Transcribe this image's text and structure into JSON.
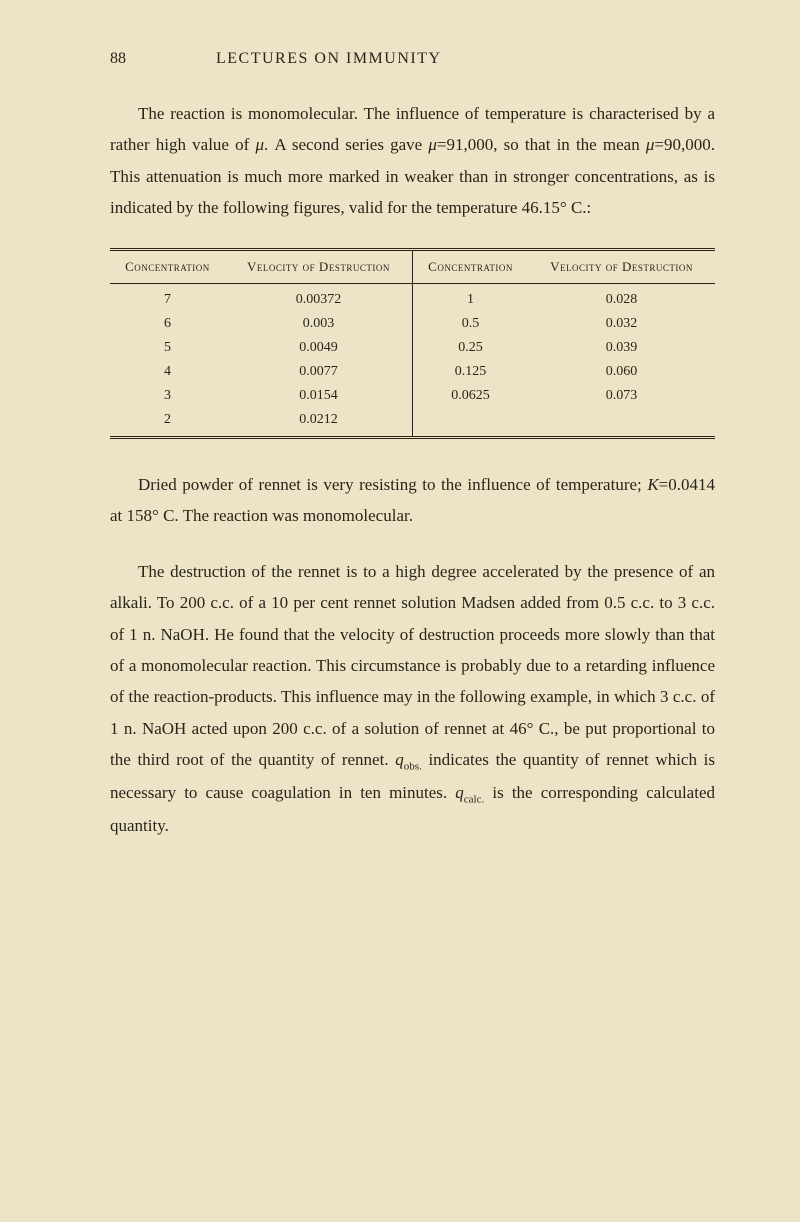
{
  "header": {
    "page_number": "88",
    "title": "LECTURES ON IMMUNITY"
  },
  "paragraph1": "The reaction is monomolecular. The influence of temperature is characterised by a rather high value of μ. A second series gave μ=91,000, so that in the mean μ=90,000. This attenuation is much more marked in weaker than in stronger concentrations, as is indicated by the following figures, valid for the temperature 46.15° C.:",
  "table": {
    "headers": [
      "Concentration",
      "Velocity of Destruction",
      "Concentration",
      "Velocity of Destruction"
    ],
    "rows": [
      [
        "7",
        "0.00372",
        "1",
        "0.028"
      ],
      [
        "6",
        "0.003",
        "0.5",
        "0.032"
      ],
      [
        "5",
        "0.0049",
        "0.25",
        "0.039"
      ],
      [
        "4",
        "0.0077",
        "0.125",
        "0.060"
      ],
      [
        "3",
        "0.0154",
        "0.0625",
        "0.073"
      ],
      [
        "2",
        "0.0212",
        "",
        ""
      ]
    ]
  },
  "paragraph2": "Dried powder of rennet is very resisting to the influence of temperature; K=0.0414 at 158° C. The reaction was monomolecular.",
  "paragraph3_part1": "The destruction of the rennet is to a high degree accelerated by the presence of an alkali. To 200 c.c. of a 10 per cent rennet solution Madsen added from 0.5 c.c. to 3 c.c. of 1 n. NaOH. He found that the velocity of destruction proceeds more slowly than that of a monomolecular reaction. This circumstance is probably due to a retarding influence of the reaction-products. This influence may in the following example, in which 3 c.c. of 1 n. NaOH acted upon 200 c.c. of a solution of rennet at 46° C., be put proportional to the third root of the quantity of rennet. ",
  "paragraph3_qobs": "q",
  "paragraph3_obs_sub": "obs.",
  "paragraph3_part2": " indicates the quantity of rennet which is necessary to cause coagulation in ten minutes. ",
  "paragraph3_qcalc": "q",
  "paragraph3_calc_sub": "calc.",
  "paragraph3_part3": " is the corresponding calculated quantity.",
  "styling": {
    "background_color": "#ede4c8",
    "text_color": "#2a2418",
    "body_font_size": 17,
    "header_font_size": 16,
    "table_font_size": 14,
    "line_height": 1.85
  }
}
